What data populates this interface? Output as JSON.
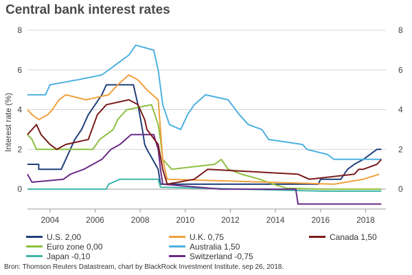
{
  "title": "Central bank interest rates",
  "source": "Bron: Thomson Reuters Datastream, chart by BlackRock Investment Institute. sep 26, 2018.",
  "chart_data": {
    "type": "line",
    "ylabel": "Interest rate (%)",
    "xlabel": "",
    "xlim": [
      2003.0,
      2018.9
    ],
    "ylim": [
      -1,
      8
    ],
    "yticks": [
      0,
      2,
      4,
      6,
      8
    ],
    "xticks": [
      2004,
      2006,
      2008,
      2010,
      2012,
      2014,
      2016,
      2018
    ],
    "xtick_labels": [
      "2004",
      "2006",
      "2008",
      "2010",
      "2012",
      "2014",
      "2016",
      "2018"
    ],
    "ytick_labels": [
      "0",
      "2",
      "4",
      "6",
      "8"
    ],
    "grid": "horizontal",
    "legend_position": "bottom",
    "series": [
      {
        "name": "U.S.",
        "legend_value": "2,00",
        "color": "#1f3e7a",
        "x": [
          2003.0,
          2003.5,
          2003.5,
          2004.5,
          2004.7,
          2004.9,
          2005.1,
          2005.4,
          2005.7,
          2006.0,
          2006.3,
          2006.5,
          2007.7,
          2007.8,
          2007.9,
          2008.1,
          2008.2,
          2008.3,
          2008.8,
          2008.9,
          2009.0,
          2015.9,
          2016.0,
          2016.9,
          2017.2,
          2017.5,
          2017.9,
          2018.2,
          2018.5,
          2018.7
        ],
        "y": [
          1.25,
          1.25,
          1.0,
          1.0,
          1.5,
          2.0,
          2.5,
          3.0,
          3.75,
          4.25,
          4.75,
          5.25,
          5.25,
          4.75,
          4.25,
          3.0,
          2.25,
          2.0,
          1.0,
          0.25,
          0.25,
          0.25,
          0.5,
          0.5,
          1.0,
          1.25,
          1.5,
          1.75,
          2.0,
          2.0
        ]
      },
      {
        "name": "Euro zone",
        "legend_value": "0,00",
        "color": "#8cbf3f",
        "x": [
          2003.0,
          2003.2,
          2003.4,
          2005.9,
          2006.2,
          2006.5,
          2006.8,
          2007.0,
          2007.4,
          2008.5,
          2008.8,
          2008.9,
          2009.0,
          2009.2,
          2009.4,
          2011.3,
          2011.6,
          2011.9,
          2012.5,
          2013.3,
          2013.9,
          2014.5,
          2016.2,
          2018.7
        ],
        "y": [
          2.75,
          2.5,
          2.0,
          2.0,
          2.5,
          2.75,
          3.0,
          3.5,
          4.0,
          4.25,
          3.25,
          2.5,
          1.5,
          1.25,
          1.0,
          1.25,
          1.5,
          1.0,
          0.75,
          0.5,
          0.25,
          0.05,
          0.0,
          0.0
        ]
      },
      {
        "name": "Japan",
        "legend_value": "-0,10",
        "color": "#3fb5a8",
        "x": [
          2003.0,
          2006.5,
          2006.6,
          2007.1,
          2008.8,
          2008.9,
          2016.1,
          2018.7
        ],
        "y": [
          0.0,
          0.0,
          0.25,
          0.5,
          0.5,
          0.1,
          -0.1,
          -0.1
        ]
      },
      {
        "name": "U.K.",
        "legend_value": "0,75",
        "color": "#f0a03c",
        "x": [
          2003.0,
          2003.2,
          2003.5,
          2003.9,
          2004.1,
          2004.4,
          2004.7,
          2005.6,
          2006.6,
          2007.0,
          2007.5,
          2007.9,
          2008.3,
          2008.8,
          2008.9,
          2009.0,
          2009.2,
          2016.6,
          2017.9,
          2018.6
        ],
        "y": [
          4.0,
          3.75,
          3.5,
          3.75,
          4.0,
          4.5,
          4.75,
          4.5,
          4.75,
          5.25,
          5.75,
          5.5,
          5.0,
          4.5,
          3.0,
          1.5,
          0.5,
          0.25,
          0.5,
          0.75
        ]
      },
      {
        "name": "Australia",
        "legend_value": "1,50",
        "color": "#4db0e0",
        "x": [
          2003.0,
          2003.8,
          2004.0,
          2005.2,
          2006.3,
          2006.9,
          2007.5,
          2007.8,
          2008.6,
          2008.8,
          2009.0,
          2009.3,
          2009.8,
          2010.1,
          2010.4,
          2010.9,
          2011.9,
          2012.4,
          2012.8,
          2013.4,
          2013.7,
          2015.2,
          2015.4,
          2016.3,
          2016.6,
          2018.7
        ],
        "y": [
          4.75,
          4.75,
          5.25,
          5.5,
          5.75,
          6.25,
          6.75,
          7.25,
          7.0,
          6.0,
          4.25,
          3.25,
          3.0,
          3.75,
          4.25,
          4.75,
          4.5,
          3.75,
          3.25,
          3.0,
          2.5,
          2.25,
          2.0,
          1.75,
          1.5,
          1.5
        ]
      },
      {
        "name": "Switzerland",
        "legend_value": "-0,75",
        "color": "#6a2a88",
        "x": [
          2003.0,
          2003.2,
          2004.6,
          2004.9,
          2005.5,
          2005.9,
          2006.3,
          2006.7,
          2007.1,
          2007.6,
          2008.6,
          2008.8,
          2008.9,
          2009.0,
          2011.6,
          2014.9,
          2015.0,
          2018.7
        ],
        "y": [
          0.75,
          0.35,
          0.5,
          0.75,
          1.0,
          1.25,
          1.5,
          2.0,
          2.25,
          2.75,
          2.75,
          2.0,
          1.0,
          0.25,
          0.0,
          0.0,
          -0.75,
          -0.75
        ]
      },
      {
        "name": "Canada",
        "legend_value": "1,50",
        "color": "#7a1a1a",
        "x": [
          2003.0,
          2003.2,
          2003.4,
          2003.6,
          2004.0,
          2004.3,
          2004.7,
          2005.7,
          2006.1,
          2006.5,
          2007.5,
          2007.9,
          2008.2,
          2008.3,
          2008.8,
          2009.0,
          2009.2,
          2010.4,
          2010.7,
          2011.0,
          2015.0,
          2015.5,
          2017.5,
          2017.7,
          2017.9,
          2018.5,
          2018.7
        ],
        "y": [
          2.75,
          3.0,
          3.25,
          2.75,
          2.25,
          2.0,
          2.25,
          2.5,
          3.75,
          4.25,
          4.5,
          4.25,
          3.5,
          3.0,
          2.25,
          1.0,
          0.25,
          0.5,
          0.75,
          1.0,
          0.75,
          0.5,
          0.75,
          1.0,
          1.0,
          1.25,
          1.5
        ]
      }
    ]
  }
}
